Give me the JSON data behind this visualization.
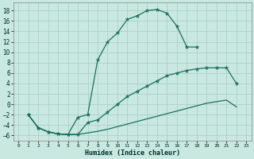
{
  "xlabel": "Humidex (Indice chaleur)",
  "background_color": "#c8e8e0",
  "grid_color": "#a8ccc4",
  "line_color": "#1a7060",
  "xlim": [
    -0.5,
    23.5
  ],
  "ylim": [
    -7,
    19.5
  ],
  "xticks": [
    0,
    1,
    2,
    3,
    4,
    5,
    6,
    7,
    8,
    9,
    10,
    11,
    12,
    13,
    14,
    15,
    16,
    17,
    18,
    19,
    20,
    21,
    22,
    23
  ],
  "yticks": [
    -6,
    -4,
    -2,
    0,
    2,
    4,
    6,
    8,
    10,
    12,
    14,
    16,
    18
  ],
  "line1_x": [
    1,
    2,
    3,
    4,
    5,
    6,
    7,
    8,
    9,
    10,
    11,
    12,
    13,
    14,
    15,
    16,
    17,
    18
  ],
  "line1_y": [
    -2.0,
    -4.5,
    -5.3,
    -5.7,
    -5.8,
    -2.5,
    -2.0,
    8.5,
    12.0,
    13.7,
    16.3,
    17.0,
    18.0,
    18.2,
    17.5,
    15.0,
    11.0,
    11.0
  ],
  "line2_x": [
    1,
    2,
    3,
    4,
    5,
    6,
    7,
    8,
    9,
    10,
    11,
    12,
    13,
    14,
    15,
    16,
    17,
    18,
    19,
    20,
    21,
    22
  ],
  "line2_y": [
    -2.0,
    -4.5,
    -5.3,
    -5.7,
    -5.8,
    -5.8,
    -3.5,
    -3.0,
    -1.5,
    0.0,
    1.5,
    2.5,
    3.5,
    4.5,
    5.5,
    6.0,
    6.5,
    6.8,
    7.0,
    7.0,
    7.0,
    4.0
  ],
  "line3_x": [
    1,
    2,
    3,
    4,
    5,
    6,
    7,
    8,
    9,
    10,
    11,
    12,
    13,
    14,
    15,
    16,
    17,
    18,
    19,
    20,
    21,
    22
  ],
  "line3_y": [
    -2.0,
    -4.5,
    -5.3,
    -5.7,
    -5.8,
    -5.8,
    -5.5,
    -5.2,
    -4.8,
    -4.3,
    -3.8,
    -3.3,
    -2.8,
    -2.3,
    -1.8,
    -1.3,
    -0.8,
    -0.3,
    0.2,
    0.5,
    0.8,
    -0.5
  ]
}
